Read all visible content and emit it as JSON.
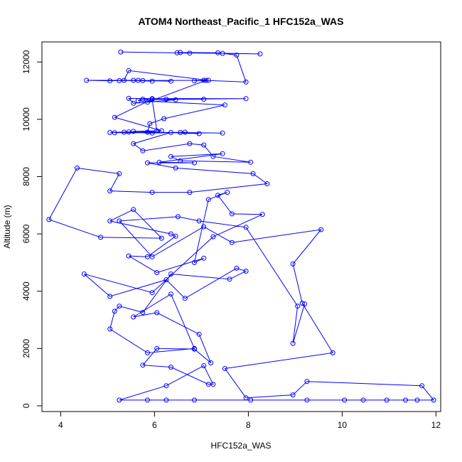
{
  "chart_data": {
    "type": "line",
    "title": "ATOM4 Northeast_Pacific_1 HFC152a_WAS",
    "xlabel": "HFC152a_WAS",
    "ylabel": "Altitude (m)",
    "xlim": [
      3.6,
      12.1
    ],
    "ylim": [
      -200,
      12700
    ],
    "xticks": [
      4,
      6,
      8,
      10,
      12
    ],
    "yticks": [
      0,
      2000,
      4000,
      6000,
      8000,
      10000,
      12000
    ],
    "grid": false,
    "color": "#0000ff",
    "marker": "open-circle",
    "series": [
      {
        "points": [
          [
            5.28,
            12350
          ],
          [
            6.75,
            12310
          ],
          [
            6.48,
            12320
          ],
          [
            7.45,
            12300
          ],
          [
            8.25,
            12280
          ],
          [
            6.55,
            12330
          ],
          [
            7.35,
            12320
          ],
          [
            7.75,
            12240
          ],
          [
            7.95,
            11300
          ],
          [
            7.05,
            11360
          ],
          [
            6.85,
            11340
          ],
          [
            7.15,
            11360
          ],
          [
            5.45,
            11700
          ],
          [
            5.35,
            11360
          ],
          [
            5.05,
            11340
          ],
          [
            4.55,
            11360
          ],
          [
            5.55,
            11360
          ],
          [
            5.95,
            11330
          ],
          [
            5.75,
            11350
          ],
          [
            6.35,
            11330
          ],
          [
            5.65,
            11360
          ],
          [
            5.25,
            11350
          ],
          [
            7.1,
            11360
          ],
          [
            5.85,
            10600
          ],
          [
            5.95,
            10720
          ],
          [
            7.95,
            10720
          ],
          [
            6.25,
            10700
          ],
          [
            7.05,
            10700
          ],
          [
            5.45,
            10730
          ],
          [
            5.55,
            10560
          ],
          [
            6.45,
            10680
          ],
          [
            5.75,
            10700
          ],
          [
            5.65,
            10650
          ],
          [
            7.5,
            10500
          ],
          [
            6.2,
            10020
          ],
          [
            5.9,
            9850
          ],
          [
            5.85,
            9550
          ],
          [
            7.45,
            9520
          ],
          [
            6.55,
            9540
          ],
          [
            5.15,
            9530
          ],
          [
            5.35,
            9550
          ],
          [
            5.95,
            9520
          ],
          [
            6.65,
            9550
          ],
          [
            6.95,
            9500
          ],
          [
            5.55,
            9580
          ],
          [
            6.15,
            9600
          ],
          [
            5.15,
            10070
          ],
          [
            5.95,
            10700
          ],
          [
            6.05,
            9600
          ],
          [
            5.45,
            9560
          ],
          [
            5.05,
            9540
          ],
          [
            6.35,
            9540
          ],
          [
            5.55,
            9150
          ],
          [
            5.75,
            8900
          ],
          [
            6.75,
            9150
          ],
          [
            7.05,
            9100
          ],
          [
            7.25,
            8700
          ],
          [
            8.05,
            8500
          ],
          [
            6.55,
            8550
          ],
          [
            6.35,
            8700
          ],
          [
            7.45,
            8800
          ],
          [
            6.1,
            8500
          ],
          [
            6.85,
            8480
          ],
          [
            5.85,
            8480
          ],
          [
            6.45,
            8300
          ],
          [
            8.1,
            8100
          ],
          [
            8.4,
            7750
          ],
          [
            6.75,
            7450
          ],
          [
            5.95,
            7450
          ],
          [
            5.05,
            7500
          ],
          [
            5.25,
            8100
          ],
          [
            4.35,
            8300
          ],
          [
            3.75,
            6500
          ],
          [
            4.85,
            5880
          ],
          [
            6.15,
            5850
          ],
          [
            5.55,
            6850
          ],
          [
            5.05,
            6450
          ],
          [
            6.35,
            6000
          ],
          [
            6.45,
            5920
          ],
          [
            5.85,
            5200
          ],
          [
            5.45,
            5230
          ],
          [
            6.05,
            4650
          ],
          [
            7.05,
            5150
          ],
          [
            6.85,
            5000
          ],
          [
            7.15,
            7200
          ],
          [
            7.55,
            7450
          ],
          [
            7.35,
            7350
          ],
          [
            7.65,
            6700
          ],
          [
            8.3,
            6680
          ],
          [
            7.25,
            5900
          ],
          [
            5.95,
            3950
          ],
          [
            4.5,
            4600
          ],
          [
            5.05,
            3820
          ],
          [
            6.25,
            4400
          ],
          [
            6.65,
            3750
          ],
          [
            7.75,
            4800
          ],
          [
            7.95,
            4700
          ],
          [
            7.6,
            4420
          ],
          [
            6.35,
            4600
          ],
          [
            5.75,
            3260
          ],
          [
            5.25,
            3480
          ],
          [
            5.15,
            3300
          ],
          [
            5.05,
            2680
          ],
          [
            5.85,
            1850
          ],
          [
            6.85,
            2000
          ],
          [
            6.35,
            3900
          ],
          [
            5.55,
            3100
          ],
          [
            6.05,
            3250
          ],
          [
            6.95,
            2500
          ],
          [
            7.2,
            1500
          ],
          [
            6.85,
            1980
          ],
          [
            6.05,
            2000
          ],
          [
            5.75,
            1420
          ],
          [
            6.35,
            1350
          ],
          [
            7.15,
            750
          ],
          [
            7.25,
            750
          ],
          [
            7.05,
            1400
          ],
          [
            6.25,
            700
          ],
          [
            5.25,
            200
          ],
          [
            5.85,
            200
          ],
          [
            6.25,
            200
          ],
          [
            6.85,
            200
          ],
          [
            8.05,
            200
          ],
          [
            9.25,
            200
          ],
          [
            10.05,
            200
          ],
          [
            10.45,
            200
          ],
          [
            10.95,
            200
          ],
          [
            11.35,
            200
          ],
          [
            11.6,
            200
          ],
          [
            11.95,
            200
          ],
          [
            11.7,
            700
          ],
          [
            9.25,
            850
          ],
          [
            8.95,
            380
          ],
          [
            7.95,
            280
          ],
          [
            7.5,
            1300
          ],
          [
            9.8,
            1850
          ],
          [
            9.15,
            3580
          ],
          [
            8.95,
            4950
          ],
          [
            9.55,
            6150
          ],
          [
            7.65,
            5700
          ],
          [
            7.05,
            6250
          ],
          [
            5.95,
            5200
          ],
          [
            5.25,
            6450
          ],
          [
            6.5,
            6600
          ],
          [
            6.95,
            6450
          ],
          [
            7.95,
            6230
          ],
          [
            9.05,
            3480
          ],
          [
            8.95,
            2180
          ],
          [
            9.2,
            3550
          ]
        ]
      }
    ]
  }
}
